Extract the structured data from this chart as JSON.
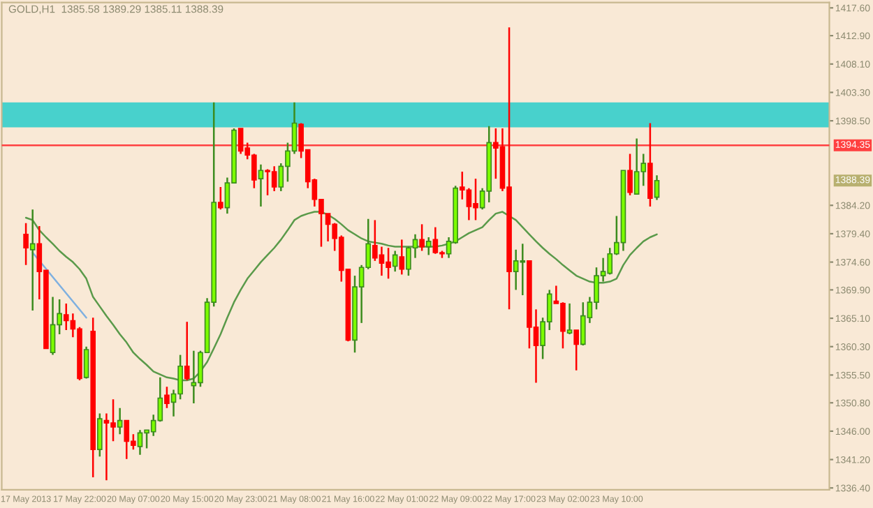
{
  "chart_data": {
    "type": "candlestick",
    "title": "GOLD,H1  1385.58 1389.29 1385.11 1388.39",
    "categories": [
      "17 May 2013",
      null,
      null,
      null,
      null,
      null,
      null,
      null,
      "17 May 22:00",
      null,
      null,
      null,
      null,
      null,
      null,
      null,
      "20 May 07:00",
      null,
      null,
      null,
      null,
      null,
      null,
      null,
      "20 May 15:00",
      null,
      null,
      null,
      null,
      null,
      null,
      null,
      "20 May 23:00",
      null,
      null,
      null,
      null,
      null,
      null,
      null,
      "21 May 08:00",
      null,
      null,
      null,
      null,
      null,
      null,
      null,
      "21 May 16:00",
      null,
      null,
      null,
      null,
      null,
      null,
      null,
      "22 May 01:00",
      null,
      null,
      null,
      null,
      null,
      null,
      null,
      "22 May 09:00",
      null,
      null,
      null,
      null,
      null,
      null,
      null,
      "22 May 17:00",
      null,
      null,
      null,
      null,
      null,
      null,
      null,
      "23 May 02:00",
      null,
      null,
      null,
      null,
      null,
      null,
      null,
      "23 May 10:00",
      null,
      null,
      null,
      null,
      null,
      null
    ],
    "ohlc": [
      [
        1379.3,
        1381.2,
        1374.1,
        1377.0
      ],
      [
        1376.7,
        1383.5,
        1366.4,
        1377.7
      ],
      [
        1377.7,
        1380.7,
        1368.3,
        1373.0
      ],
      [
        1373.2,
        1373.2,
        1360.0,
        1360.0
      ],
      [
        1359.3,
        1368.7,
        1358.9,
        1364.0
      ],
      [
        1364.0,
        1368.3,
        1362.4,
        1365.9
      ],
      [
        1365.7,
        1367.6,
        1363.1,
        1364.7
      ],
      [
        1364.7,
        1365.9,
        1361.9,
        1363.3
      ],
      [
        1363.3,
        1363.6,
        1354.6,
        1354.9
      ],
      [
        1355.1,
        1360.3,
        1354.9,
        1359.8
      ],
      [
        1362.9,
        1365.2,
        1338.2,
        1342.9
      ],
      [
        1342.9,
        1349.0,
        1341.7,
        1348.1
      ],
      [
        1347.8,
        1349.0,
        1337.7,
        1347.4
      ],
      [
        1347.4,
        1351.4,
        1344.3,
        1346.7
      ],
      [
        1346.7,
        1349.9,
        1345.5,
        1347.8
      ],
      [
        1347.8,
        1347.8,
        1341.3,
        1344.3
      ],
      [
        1344.3,
        1345.5,
        1342.9,
        1343.6
      ],
      [
        1343.4,
        1346.2,
        1342.0,
        1345.7
      ],
      [
        1345.7,
        1346.2,
        1343.1,
        1346.2
      ],
      [
        1345.9,
        1348.8,
        1345.2,
        1347.8
      ],
      [
        1347.8,
        1355.1,
        1347.6,
        1351.6
      ],
      [
        1352.1,
        1353.5,
        1349.9,
        1350.7
      ],
      [
        1350.9,
        1353.0,
        1348.5,
        1352.3
      ],
      [
        1352.3,
        1358.9,
        1351.4,
        1357.0
      ],
      [
        1357.0,
        1364.5,
        1354.6,
        1354.9
      ],
      [
        1353.7,
        1359.6,
        1350.7,
        1354.2
      ],
      [
        1354.2,
        1359.6,
        1353.5,
        1359.3
      ],
      [
        1359.3,
        1368.5,
        1359.3,
        1367.8
      ],
      [
        1367.8,
        1401.6,
        1367.1,
        1384.7
      ],
      [
        1384.7,
        1387.3,
        1383.5,
        1383.8
      ],
      [
        1383.8,
        1388.9,
        1382.8,
        1388.0
      ],
      [
        1388.0,
        1397.2,
        1388.0,
        1396.9
      ],
      [
        1397.2,
        1397.2,
        1392.9,
        1393.4
      ],
      [
        1393.9,
        1394.8,
        1392.0,
        1392.7
      ],
      [
        1392.7,
        1392.9,
        1387.1,
        1388.5
      ],
      [
        1388.7,
        1391.1,
        1384.0,
        1390.1
      ],
      [
        1390.1,
        1390.3,
        1385.9,
        1389.9
      ],
      [
        1389.9,
        1390.8,
        1386.6,
        1387.3
      ],
      [
        1387.3,
        1391.3,
        1386.6,
        1390.8
      ],
      [
        1390.8,
        1394.8,
        1388.2,
        1393.4
      ],
      [
        1393.4,
        1401.6,
        1392.9,
        1398.1
      ],
      [
        1397.9,
        1398.1,
        1392.2,
        1393.4
      ],
      [
        1393.6,
        1393.6,
        1387.1,
        1388.2
      ],
      [
        1388.5,
        1388.7,
        1384.0,
        1385.2
      ],
      [
        1385.2,
        1385.2,
        1377.2,
        1382.8
      ],
      [
        1382.8,
        1382.8,
        1378.1,
        1381.0
      ],
      [
        1381.0,
        1381.2,
        1376.5,
        1378.6
      ],
      [
        1378.8,
        1379.1,
        1371.3,
        1373.2
      ],
      [
        1373.4,
        1373.4,
        1361.2,
        1361.4
      ],
      [
        1361.4,
        1372.3,
        1359.3,
        1370.4
      ],
      [
        1370.4,
        1374.1,
        1364.3,
        1373.7
      ],
      [
        1373.7,
        1381.9,
        1373.4,
        1377.7
      ],
      [
        1377.4,
        1381.7,
        1374.8,
        1375.3
      ],
      [
        1375.8,
        1377.2,
        1372.3,
        1374.4
      ],
      [
        1374.6,
        1377.0,
        1371.8,
        1373.7
      ],
      [
        1373.9,
        1376.5,
        1373.0,
        1375.8
      ],
      [
        1375.5,
        1378.4,
        1372.5,
        1373.4
      ],
      [
        1373.4,
        1377.2,
        1372.3,
        1377.0
      ],
      [
        1377.0,
        1379.3,
        1375.3,
        1378.4
      ],
      [
        1378.4,
        1381.0,
        1376.5,
        1377.2
      ],
      [
        1377.2,
        1378.8,
        1375.8,
        1378.1
      ],
      [
        1378.4,
        1380.5,
        1376.0,
        1376.2
      ],
      [
        1376.2,
        1376.5,
        1375.3,
        1376.0
      ],
      [
        1376.0,
        1378.8,
        1375.3,
        1378.1
      ],
      [
        1377.9,
        1387.5,
        1377.7,
        1387.1
      ],
      [
        1387.3,
        1389.9,
        1385.2,
        1386.8
      ],
      [
        1386.8,
        1387.1,
        1381.7,
        1384.0
      ],
      [
        1384.5,
        1388.7,
        1381.7,
        1383.8
      ],
      [
        1383.8,
        1387.1,
        1383.5,
        1386.6
      ],
      [
        1386.6,
        1397.6,
        1384.7,
        1394.8
      ],
      [
        1394.8,
        1397.2,
        1388.7,
        1393.9
      ],
      [
        1394.1,
        1397.2,
        1386.6,
        1387.1
      ],
      [
        1387.3,
        1414.3,
        1366.6,
        1373.0
      ],
      [
        1373.0,
        1376.7,
        1369.9,
        1374.8
      ],
      [
        1374.6,
        1377.7,
        1369.0,
        1374.8
      ],
      [
        1374.8,
        1374.8,
        1360.0,
        1363.6
      ],
      [
        1363.6,
        1366.6,
        1354.2,
        1360.5
      ],
      [
        1360.5,
        1365.2,
        1358.2,
        1364.5
      ],
      [
        1364.5,
        1369.9,
        1363.1,
        1369.2
      ],
      [
        1368.0,
        1370.6,
        1367.6,
        1367.6
      ],
      [
        1367.6,
        1367.8,
        1360.0,
        1362.9
      ],
      [
        1362.6,
        1367.6,
        1362.4,
        1363.1
      ],
      [
        1363.1,
        1363.1,
        1356.3,
        1360.7
      ],
      [
        1360.7,
        1367.8,
        1360.5,
        1365.5
      ],
      [
        1365.2,
        1368.7,
        1364.3,
        1367.8
      ],
      [
        1367.8,
        1373.7,
        1366.6,
        1372.3
      ],
      [
        1372.3,
        1375.3,
        1371.3,
        1373.0
      ],
      [
        1372.7,
        1377.0,
        1372.5,
        1376.0
      ],
      [
        1376.0,
        1382.4,
        1375.8,
        1377.9
      ],
      [
        1377.9,
        1390.1,
        1376.5,
        1390.1
      ],
      [
        1390.1,
        1392.9,
        1385.9,
        1386.4
      ],
      [
        1386.1,
        1395.5,
        1386.1,
        1389.9
      ],
      [
        1389.9,
        1392.9,
        1387.5,
        1391.3
      ],
      [
        1391.3,
        1398.1,
        1384.0,
        1385.4
      ],
      [
        1385.58,
        1389.29,
        1385.11,
        1388.39
      ]
    ],
    "colors": [
      "#ff0000",
      "#7cfc00",
      "#ff0000",
      "#ff0000",
      "#7cfc00",
      "#7cfc00",
      "#ff0000",
      "#ff0000",
      "#ff0000",
      "#7cfc00",
      "#ff0000",
      "#7cfc00",
      "#ff0000",
      "#ff0000",
      "#7cfc00",
      "#ff0000",
      "#ff0000",
      "#7cfc00",
      "#7cfc00",
      "#7cfc00",
      "#7cfc00",
      "#ff0000",
      "#7cfc00",
      "#7cfc00",
      "#ff0000",
      "#7cfc00",
      "#7cfc00",
      "#7cfc00",
      "#7cfc00",
      "#ff0000",
      "#7cfc00",
      "#7cfc00",
      "#ff0000",
      "#ff0000",
      "#ff0000",
      "#7cfc00",
      "#ff0000",
      "#ff0000",
      "#7cfc00",
      "#7cfc00",
      "#7cfc00",
      "#ff0000",
      "#ff0000",
      "#ff0000",
      "#ff0000",
      "#ff0000",
      "#ff0000",
      "#ff0000",
      "#ff0000",
      "#7cfc00",
      "#7cfc00",
      "#7cfc00",
      "#ff0000",
      "#ff0000",
      "#ff0000",
      "#7cfc00",
      "#ff0000",
      "#7cfc00",
      "#7cfc00",
      "#ff0000",
      "#7cfc00",
      "#ff0000",
      "#ff0000",
      "#7cfc00",
      "#7cfc00",
      "#ff0000",
      "#ff0000",
      "#ff0000",
      "#7cfc00",
      "#7cfc00",
      "#ff0000",
      "#ff0000",
      "#ff0000",
      "#7cfc00",
      "#7cfc00",
      "#ff0000",
      "#ff0000",
      "#7cfc00",
      "#7cfc00",
      "#ff0000",
      "#ff0000",
      "#7cfc00",
      "#ff0000",
      "#7cfc00",
      "#7cfc00",
      "#7cfc00",
      "#7cfc00",
      "#7cfc00",
      "#7cfc00",
      "#7cfc00",
      "#ff0000",
      "#7cfc00",
      "#7cfc00",
      "#ff0000",
      "#7cfc00"
    ],
    "series": [
      {
        "type": "line",
        "color": "#5a9a4a",
        "values": [
          1382.1,
          1381.7,
          1380.0,
          1378.8,
          1377.7,
          1376.5,
          1375.5,
          1374.6,
          1373.4,
          1371.8,
          1368.7,
          1367.1,
          1365.5,
          1364.0,
          1362.4,
          1361.0,
          1359.3,
          1358.2,
          1357.2,
          1356.1,
          1355.6,
          1355.1,
          1354.9,
          1354.6,
          1354.6,
          1354.9,
          1356.1,
          1357.7,
          1360.0,
          1362.4,
          1365.2,
          1367.8,
          1369.9,
          1371.8,
          1373.2,
          1374.6,
          1375.8,
          1377.0,
          1378.4,
          1380.0,
          1381.7,
          1382.4,
          1382.8,
          1383.1,
          1383.1,
          1382.6,
          1381.9,
          1381.0,
          1380.0,
          1379.3,
          1378.6,
          1378.1,
          1377.9,
          1377.7,
          1377.4,
          1377.2,
          1377.2,
          1377.2,
          1377.2,
          1377.2,
          1377.2,
          1377.2,
          1377.4,
          1377.7,
          1378.1,
          1378.8,
          1379.5,
          1380.0,
          1380.5,
          1381.7,
          1382.8,
          1383.1,
          1382.4,
          1381.7,
          1380.5,
          1379.3,
          1378.1,
          1377.0,
          1376.0,
          1375.1,
          1374.1,
          1373.2,
          1372.3,
          1371.8,
          1371.3,
          1371.1,
          1371.1,
          1371.3,
          1371.8,
          1374.1,
          1375.8,
          1377.0,
          1378.1,
          1378.8,
          1379.3
        ]
      },
      {
        "type": "line",
        "color": "#7fb0e0",
        "values": [
          null,
          1376.2,
          null,
          null,
          null,
          null,
          null,
          null,
          null,
          1365.2,
          null,
          null,
          null,
          null,
          null,
          null,
          null,
          null,
          null,
          null,
          null,
          null,
          null,
          null,
          null,
          null,
          null,
          null,
          null,
          null,
          null,
          null,
          null,
          null,
          null,
          null,
          null,
          null,
          null,
          null,
          null,
          null,
          null,
          null,
          null,
          null,
          null,
          null,
          null,
          null,
          null,
          null,
          null,
          null,
          null,
          null,
          null,
          null,
          null,
          null,
          null,
          null,
          null,
          null,
          null,
          null,
          null,
          null,
          null,
          null,
          null,
          null,
          null,
          null,
          null,
          null,
          null,
          null,
          null,
          null,
          null,
          null,
          null,
          null,
          null,
          null,
          null,
          null,
          null,
          null,
          null,
          null,
          null,
          null,
          null
        ]
      }
    ],
    "ylim": [
      1336.1,
      1418.5
    ],
    "yticks": [
      {
        "value": 1417.6,
        "label": "1417.60"
      },
      {
        "value": 1412.9,
        "label": "1412.90"
      },
      {
        "value": 1408.1,
        "label": "1408.10"
      },
      {
        "value": 1403.3,
        "label": "1403.30"
      },
      {
        "value": 1398.5,
        "label": "1398.50"
      },
      {
        "value": 1384.2,
        "label": "1384.20"
      },
      {
        "value": 1379.4,
        "label": "1379.40"
      },
      {
        "value": 1374.6,
        "label": "1374.60"
      },
      {
        "value": 1369.9,
        "label": "1369.90"
      },
      {
        "value": 1365.1,
        "label": "1365.10"
      },
      {
        "value": 1360.3,
        "label": "1360.30"
      },
      {
        "value": 1355.5,
        "label": "1355.50"
      },
      {
        "value": 1350.8,
        "label": "1350.80"
      },
      {
        "value": 1346.0,
        "label": "1346.00"
      },
      {
        "value": 1341.2,
        "label": "1341.20"
      },
      {
        "value": 1336.4,
        "label": "1336.40"
      }
    ],
    "ref_lines": [
      {
        "axis": "y",
        "value": 1394.35,
        "label": "1394.35",
        "color": "#ff4040"
      }
    ],
    "bands": [
      {
        "axis": "y",
        "from": 1397.4,
        "to": 1401.6,
        "color": "#48d1cc"
      }
    ],
    "annotations": [
      "1388.39"
    ],
    "grid": false,
    "legend": false
  }
}
